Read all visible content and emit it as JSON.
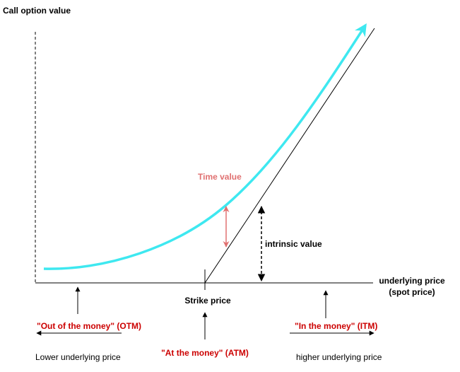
{
  "y_axis_label": "Call option value",
  "x_axis_label": [
    "underlying price",
    "(spot price)"
  ],
  "time_value": "Time value",
  "intrinsic_value": "intrinsic value",
  "strike_price": "Strike price",
  "otm": "\"Out of the money\" (OTM)",
  "atm": "\"At the money\" (ATM)",
  "itm": "\"In the money\" (ITM)",
  "lower_price": "Lower underlying price",
  "higher_price": "higher underlying price"
}
